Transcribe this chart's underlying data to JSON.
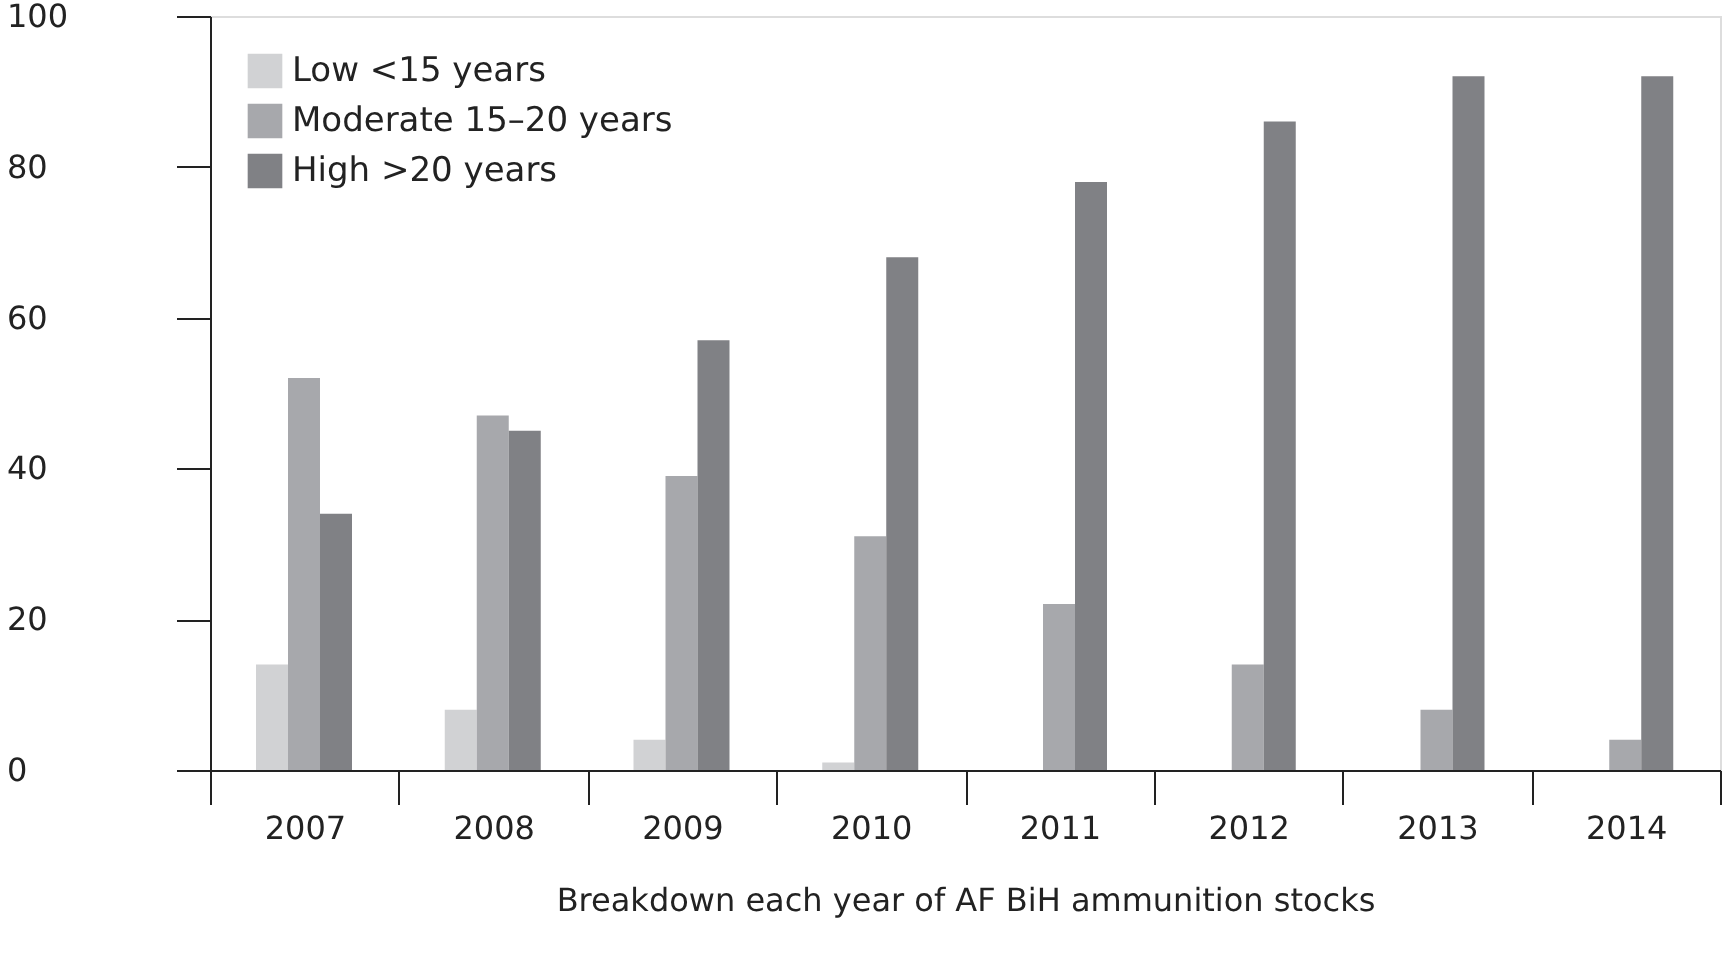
{
  "chart_data": {
    "type": "bar",
    "xlabel": "Breakdown each year of AF BiH ammunition stocks",
    "categories": [
      "2007",
      "2008",
      "2009",
      "2010",
      "2011",
      "2012",
      "2013",
      "2014"
    ],
    "series": [
      {
        "name": "Low <15 years",
        "color": "#d1d2d4",
        "values": [
          14,
          8,
          4,
          1,
          0,
          0,
          0,
          0
        ]
      },
      {
        "name": "Moderate 15–20 years",
        "color": "#a7a8ac",
        "values": [
          52,
          47,
          39,
          31,
          22,
          14,
          8,
          4
        ]
      },
      {
        "name": "High >20 years",
        "color": "#808185",
        "values": [
          34,
          45,
          57,
          68,
          78,
          86,
          92,
          92
        ]
      }
    ],
    "ylim": [
      0,
      100
    ],
    "yticks": [
      0,
      20,
      40,
      60,
      80,
      100
    ],
    "grid": false,
    "legend": "top left"
  }
}
